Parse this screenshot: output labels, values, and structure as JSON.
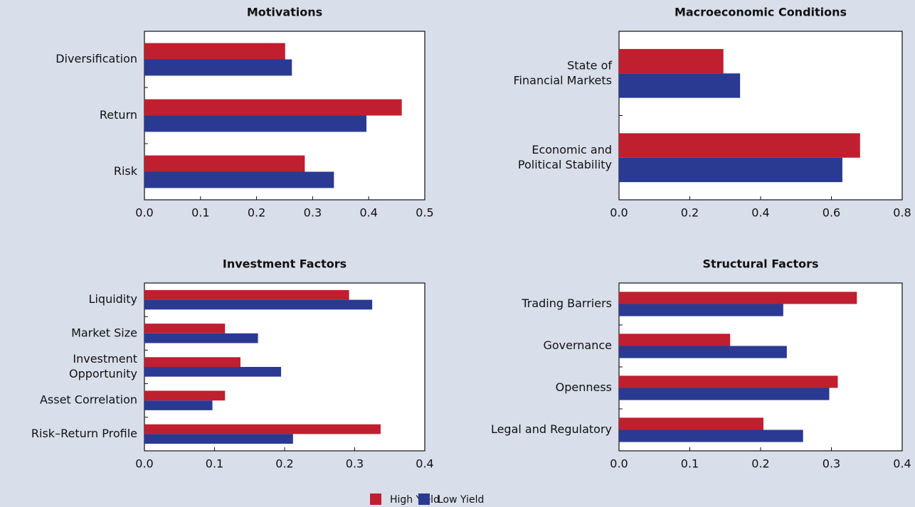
{
  "chart_data": [
    {
      "type": "barh",
      "title": "Motivations",
      "categories": [
        [
          "Diversification"
        ],
        [
          "Return"
        ],
        [
          "Risk"
        ]
      ],
      "series": [
        {
          "name": "High Yield",
          "color": "#c01f2f",
          "values": [
            0.251,
            0.459,
            0.286
          ]
        },
        {
          "name": "Low Yield",
          "color": "#2a3a92",
          "values": [
            0.263,
            0.396,
            0.338
          ]
        }
      ],
      "xlim": [
        0,
        0.5
      ],
      "xticks": [
        {
          "value": 0,
          "label": "0.0"
        },
        0.1,
        0.2,
        0.3,
        0.4,
        0.5
      ]
    },
    {
      "type": "barh",
      "title": "Macroeconomic Conditions",
      "categories": [
        [
          "State of",
          "Financial Markets"
        ],
        [
          "Economic and",
          "Political Stability"
        ]
      ],
      "series": [
        {
          "color": "#c01f2f",
          "values": [
            0.295,
            0.681
          ]
        },
        {
          "color": "#2a3a92",
          "values": [
            0.342,
            0.631
          ]
        }
      ],
      "xlim": [
        0,
        0.8
      ],
      "xticks": [
        {
          "value": 0,
          "label": "0.0"
        },
        0.2,
        0.4,
        0.6,
        0.8
      ]
    },
    {
      "type": "barh",
      "title": "Investment Factors",
      "categories": [
        [
          "Liquidity"
        ],
        [
          "Market Size"
        ],
        [
          "Investment",
          "Opportunity"
        ],
        [
          "Asset Correlation"
        ],
        [
          "Risk–Return Profile"
        ]
      ],
      "series": [
        {
          "color": "#c01f2f",
          "values": [
            0.292,
            0.115,
            0.137,
            0.115,
            0.337
          ]
        },
        {
          "color": "#2a3a92",
          "values": [
            0.325,
            0.162,
            0.195,
            0.097,
            0.212
          ]
        }
      ],
      "xlim": [
        0,
        0.4
      ],
      "xticks": [
        {
          "value": 0,
          "label": "0.0"
        },
        0.1,
        0.2,
        0.3,
        0.4
      ]
    },
    {
      "type": "barh",
      "title": "Structural Factors",
      "categories": [
        [
          "Trading Barriers"
        ],
        [
          "Governance"
        ],
        [
          "Openness"
        ],
        [
          "Legal and Regulatory"
        ]
      ],
      "series": [
        {
          "color": "#c01f2f",
          "values": [
            0.336,
            0.157,
            0.309,
            0.204
          ]
        },
        {
          "color": "#2a3a92",
          "values": [
            0.232,
            0.237,
            0.297,
            0.26
          ]
        }
      ],
      "xlim": [
        0,
        0.4
      ],
      "xticks": [
        {
          "value": 0,
          "label": "0.0"
        },
        0.1,
        0.2,
        0.3,
        0.4
      ]
    }
  ]
}
